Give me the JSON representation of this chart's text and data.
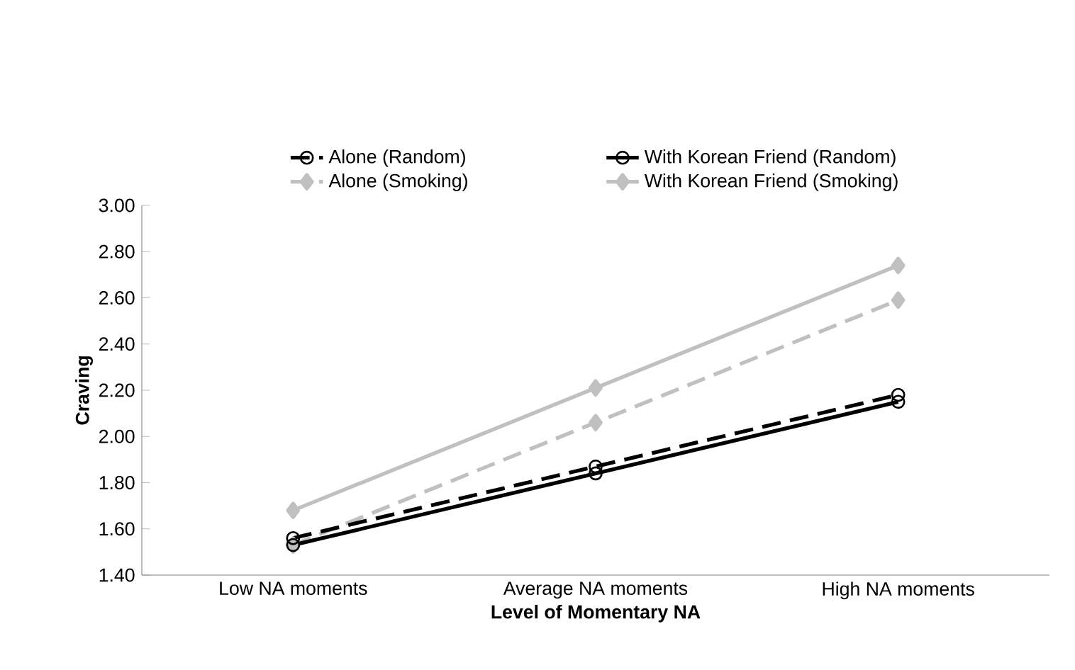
{
  "chart_data": {
    "type": "line",
    "xlabel": "Level of Momentary NA",
    "ylabel": "Craving",
    "categories": [
      "Low NA moments",
      "Average NA moments",
      "High NA moments"
    ],
    "series": [
      {
        "name": "Alone (Random)",
        "color": "#000000",
        "marker": "circle",
        "line_style": "dashed",
        "values": [
          1.56,
          1.87,
          2.18
        ]
      },
      {
        "name": "With Korean Friend (Random)",
        "color": "#000000",
        "marker": "circle",
        "line_style": "solid",
        "values": [
          1.53,
          1.84,
          2.15
        ]
      },
      {
        "name": "Alone (Smoking)",
        "color": "#c0c0c0",
        "marker": "diamond",
        "line_style": "dashed",
        "values": [
          1.53,
          2.06,
          2.59
        ]
      },
      {
        "name": "With Korean Friend (Smoking)",
        "color": "#c0c0c0",
        "marker": "diamond",
        "line_style": "solid",
        "values": [
          1.68,
          2.21,
          2.74
        ]
      }
    ],
    "ylim": [
      1.4,
      3.0
    ],
    "yticks": [
      {
        "value": 1.4,
        "label": "1.40"
      },
      {
        "value": 1.6,
        "label": "1.60"
      },
      {
        "value": 1.8,
        "label": "1.80"
      },
      {
        "value": 2.0,
        "label": "2.00"
      },
      {
        "value": 2.2,
        "label": "2.20"
      },
      {
        "value": 2.4,
        "label": "2.40"
      },
      {
        "value": 2.6,
        "label": "2.60"
      },
      {
        "value": 2.8,
        "label": "2.80"
      },
      {
        "value": 3.0,
        "label": "3.00"
      }
    ],
    "grid": false,
    "legend": "top"
  }
}
